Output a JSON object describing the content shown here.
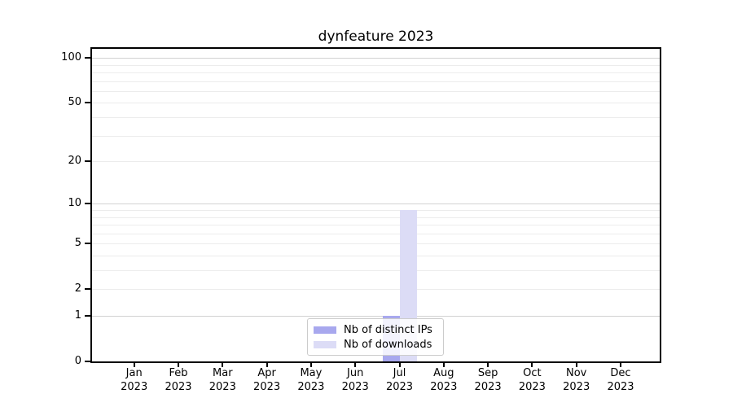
{
  "chart_data": {
    "type": "bar",
    "title": "dynfeature 2023",
    "x_months": [
      "Jan",
      "Feb",
      "Mar",
      "Apr",
      "May",
      "Jun",
      "Jul",
      "Aug",
      "Sep",
      "Oct",
      "Nov",
      "Dec"
    ],
    "x_year": "2023",
    "yticks": [
      0,
      1,
      2,
      5,
      10,
      20,
      50,
      100
    ],
    "major_gridlines": [
      1,
      10,
      100
    ],
    "minor_gridlines": [
      2,
      3,
      4,
      5,
      6,
      7,
      8,
      9,
      20,
      30,
      40,
      50,
      60,
      70,
      80,
      90
    ],
    "scale": "log1p",
    "ylim": [
      0,
      115
    ],
    "grid": "horizontal",
    "legend_position": "lower center",
    "series": [
      {
        "name": "Nb of distinct IPs",
        "color": "#a8a8ee",
        "values": [
          0,
          0,
          0,
          0,
          0,
          0,
          1,
          0,
          0,
          0,
          0,
          0
        ]
      },
      {
        "name": "Nb of downloads",
        "color": "#dcdcf6",
        "values": [
          0,
          0,
          0,
          0,
          0,
          0,
          9,
          0,
          0,
          0,
          0,
          0
        ]
      }
    ]
  }
}
